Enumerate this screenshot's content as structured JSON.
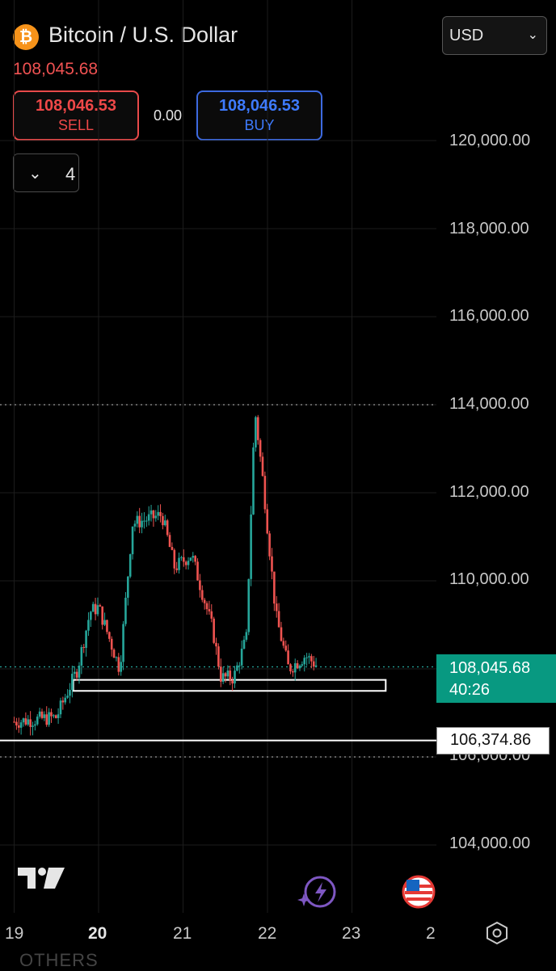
{
  "header": {
    "coin_symbol": "₿",
    "title": "Bitcoin / U.S. Dollar",
    "last_price": "108,045.68",
    "currency": "USD",
    "currency_chevron": "chevron-down-icon"
  },
  "trade": {
    "sell_price": "108,046.53",
    "sell_label": "SELL",
    "spread": "0.00",
    "buy_price": "108,046.53",
    "buy_label": "BUY"
  },
  "indicators": {
    "chevron": "chevron-down-icon",
    "count": "4"
  },
  "colors": {
    "up": "#26a69a",
    "down": "#ef5350",
    "accent": "#089981",
    "sell": "#e84a4a",
    "buy": "#3d6ae0"
  },
  "price_tag": {
    "price": "108,045.68",
    "countdown": "40:26"
  },
  "line_tag": {
    "price": "106,374.86"
  },
  "footer": {
    "faded_text": "OTHERS",
    "logo": "tradingview-logo",
    "icons": [
      "lightning-icon",
      "us-flag-icon",
      "settings-icon"
    ]
  },
  "chart_data": {
    "type": "candlestick",
    "title": "Bitcoin / U.S. Dollar",
    "y_ticks": [
      "120,000.00",
      "118,000.00",
      "116,000.00",
      "114,000.00",
      "112,000.00",
      "110,000.00",
      "106,000.00",
      "104,000.00"
    ],
    "x_ticks": [
      "19",
      "20",
      "21",
      "22",
      "23",
      "2"
    ],
    "ylim": [
      103000,
      121500
    ],
    "grid": true,
    "current_price": 108045.68,
    "horizontal_line": 106374.86,
    "dotted_levels": [
      114000,
      108045.68,
      106000
    ],
    "zone": {
      "from_day": 19.7,
      "to_day": 23.4,
      "low": 107500,
      "high": 107750
    },
    "ohlc_approx": [
      {
        "day": 19.0,
        "close": 106800
      },
      {
        "day": 19.5,
        "close": 106900
      },
      {
        "day": 19.75,
        "close": 108000
      },
      {
        "day": 19.9,
        "close": 109300
      },
      {
        "day": 20.0,
        "close": 109400
      },
      {
        "day": 20.25,
        "close": 108000
      },
      {
        "day": 20.4,
        "close": 111300
      },
      {
        "day": 20.75,
        "close": 111500
      },
      {
        "day": 20.9,
        "close": 110300
      },
      {
        "day": 21.1,
        "close": 110600
      },
      {
        "day": 21.35,
        "close": 108900
      },
      {
        "day": 21.45,
        "close": 107800
      },
      {
        "day": 21.6,
        "close": 107800
      },
      {
        "day": 21.75,
        "close": 108700
      },
      {
        "day": 21.85,
        "close": 113900
      },
      {
        "day": 21.95,
        "close": 112200
      },
      {
        "day": 22.1,
        "close": 109200
      },
      {
        "day": 22.25,
        "close": 108000
      },
      {
        "day": 22.45,
        "close": 108300
      },
      {
        "day": 22.6,
        "close": 108050
      }
    ]
  }
}
